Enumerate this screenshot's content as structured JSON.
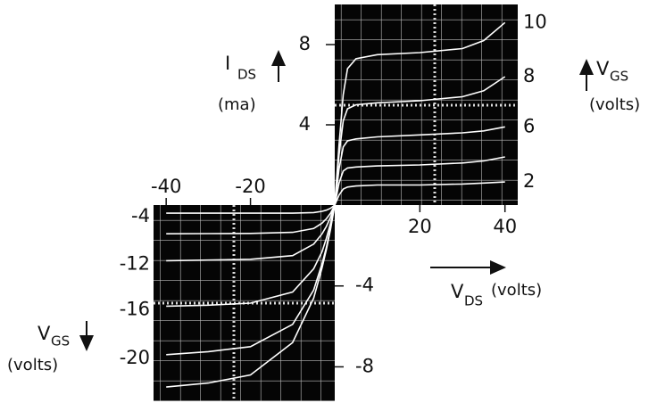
{
  "chart_data": [
    {
      "type": "line",
      "y_label": {
        "symbol": "I",
        "subscript": "DS",
        "unit": "(ma)"
      },
      "series_label": {
        "symbol": "V",
        "subscript": "GS",
        "unit": "(volts)"
      },
      "x_label": {
        "symbol": "V",
        "subscript": "DS",
        "unit": "(volts)"
      },
      "x": [
        0,
        1,
        2,
        3,
        5,
        10,
        20,
        30,
        35,
        40
      ],
      "xlim": [
        0,
        43
      ],
      "ylim": [
        0,
        10
      ],
      "xticks": [
        20,
        40
      ],
      "yticks": [
        8,
        4
      ],
      "series": [
        {
          "name": "10",
          "color": "#ffffff",
          "values": [
            0,
            3,
            5.5,
            6.8,
            7.3,
            7.5,
            7.6,
            7.8,
            8.2,
            9.1
          ]
        },
        {
          "name": "8",
          "color": "#ffffff",
          "values": [
            0,
            2.5,
            4.2,
            4.8,
            5.0,
            5.1,
            5.2,
            5.4,
            5.7,
            6.4
          ]
        },
        {
          "name": "6",
          "color": "#ffffff",
          "values": [
            0,
            1.8,
            2.9,
            3.2,
            3.3,
            3.4,
            3.5,
            3.6,
            3.7,
            3.9
          ]
        },
        {
          "name": null,
          "color": "#ffffff",
          "values": [
            0,
            1.1,
            1.7,
            1.85,
            1.9,
            1.95,
            2.0,
            2.1,
            2.2,
            2.4
          ]
        },
        {
          "name": "2",
          "color": "#ffffff",
          "values": [
            0,
            0.5,
            0.8,
            0.9,
            0.95,
            1.0,
            1.0,
            1.05,
            1.1,
            1.15
          ]
        }
      ]
    },
    {
      "type": "line",
      "series_label": {
        "symbol": "V",
        "subscript": "GS",
        "unit": "(volts)"
      },
      "x": [
        -40,
        -30,
        -20,
        -10,
        -5,
        -3,
        -2,
        -1,
        0
      ],
      "xlim": [
        -43,
        0
      ],
      "ylim": [
        -9.7,
        0
      ],
      "xticks": [
        -40,
        -20
      ],
      "yticks": [
        -4,
        -8
      ],
      "series": [
        {
          "name": "-4",
          "color": "#ffffff",
          "values": [
            -0.4,
            -0.4,
            -0.4,
            -0.4,
            -0.37,
            -0.31,
            -0.25,
            -0.16,
            0
          ]
        },
        {
          "name": null,
          "color": "#ffffff",
          "values": [
            -1.42,
            -1.41,
            -1.4,
            -1.35,
            -1.16,
            -0.89,
            -0.68,
            -0.4,
            0
          ]
        },
        {
          "name": "-12",
          "color": "#ffffff",
          "values": [
            -2.75,
            -2.72,
            -2.68,
            -2.5,
            -1.93,
            -1.42,
            -1.06,
            -0.6,
            0
          ]
        },
        {
          "name": "-16",
          "color": "#ffffff",
          "values": [
            -5.0,
            -4.95,
            -4.85,
            -4.3,
            -3.15,
            -2.3,
            -1.65,
            -0.9,
            0
          ]
        },
        {
          "name": "-20",
          "color": "#ffffff",
          "values": [
            -7.4,
            -7.25,
            -7.0,
            -5.9,
            -4.2,
            -2.9,
            -2.1,
            -1.1,
            0
          ]
        },
        {
          "name": null,
          "color": "#ffffff",
          "values": [
            -9.0,
            -8.8,
            -8.4,
            -6.8,
            -4.6,
            -3.1,
            -2.2,
            -1.2,
            0
          ]
        }
      ]
    }
  ]
}
